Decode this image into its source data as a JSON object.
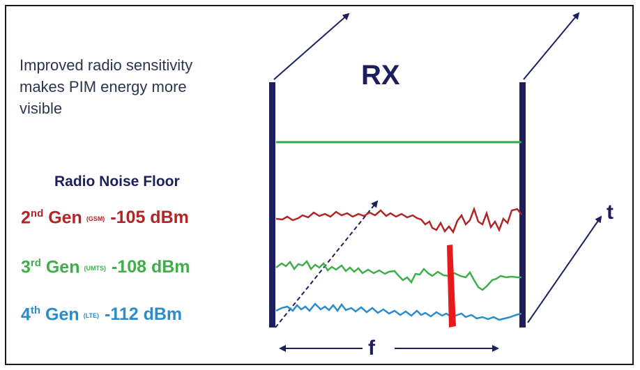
{
  "intro": {
    "line1": "Improved radio sensitivity",
    "line2": "makes PIM energy more",
    "line3": "visible"
  },
  "rx_label": "RX",
  "noise_floor_title": "Radio Noise Floor",
  "generations": [
    {
      "num": "2",
      "suffix": "nd",
      "gen": "Gen",
      "tech": "(GSM)",
      "value": "-105 dBm",
      "color": "#b02525"
    },
    {
      "num": "3",
      "suffix": "rd",
      "gen": "Gen",
      "tech": "(UMTS)",
      "value": "-108 dBm",
      "color": "#3fae49"
    },
    {
      "num": "4",
      "suffix": "th",
      "gen": "Gen",
      "tech": "(LTE)",
      "value": "-112 dBm",
      "color": "#2b8ccc"
    }
  ],
  "axis_t": "t",
  "axis_f": "f",
  "colors": {
    "frame": "#1b1f5e",
    "threshold": "#2ea84a",
    "pim_spike": "#e8191b"
  }
}
